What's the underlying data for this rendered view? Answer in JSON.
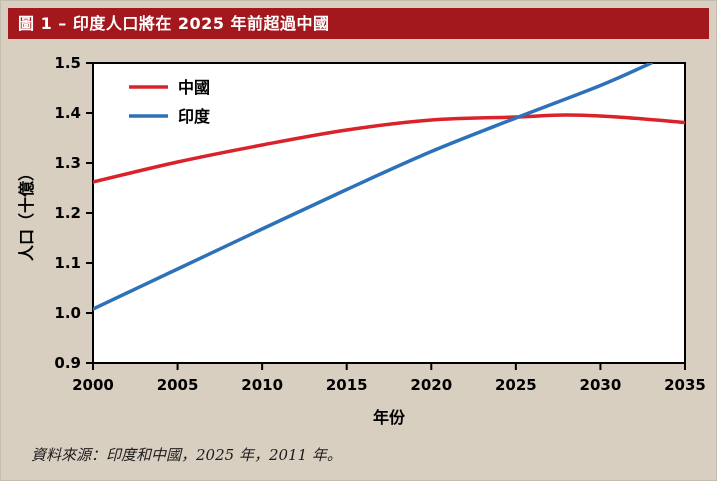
{
  "title": "圖 1 – 印度人口將在 2025 年前超過中國",
  "source": "資料來源：印度和中國，2025 年，2011 年。",
  "colors": {
    "title_bar": "#a2181d",
    "background": "#d9cfc1",
    "plot_background": "#ffffff",
    "axis": "#000000",
    "china_line": "#d9222a",
    "india_line": "#2d72b8"
  },
  "chart_data": {
    "type": "line",
    "title": "圖 1 – 印度人口將在 2025 年前超過中國",
    "xlabel": "年份",
    "ylabel": "人口（十億）",
    "xlim": [
      2000,
      2035
    ],
    "ylim": [
      0.9,
      1.5
    ],
    "xticks": [
      2000,
      2005,
      2010,
      2015,
      2020,
      2025,
      2030,
      2035
    ],
    "yticks": [
      0.9,
      1.0,
      1.1,
      1.2,
      1.3,
      1.4,
      1.5
    ],
    "grid": false,
    "legend_position": "top-left",
    "series": [
      {
        "name": "中國",
        "key": "china",
        "color": "#d9222a",
        "points": [
          [
            2000,
            1.262
          ],
          [
            2005,
            1.302
          ],
          [
            2010,
            1.336
          ],
          [
            2015,
            1.366
          ],
          [
            2020,
            1.386
          ],
          [
            2025,
            1.392
          ],
          [
            2028,
            1.396
          ],
          [
            2031,
            1.392
          ],
          [
            2035,
            1.381
          ]
        ]
      },
      {
        "name": "印度",
        "key": "india",
        "color": "#2d72b8",
        "points": [
          [
            2000,
            1.008
          ],
          [
            2005,
            1.088
          ],
          [
            2010,
            1.168
          ],
          [
            2015,
            1.247
          ],
          [
            2020,
            1.323
          ],
          [
            2025,
            1.39
          ],
          [
            2030,
            1.455
          ],
          [
            2033,
            1.5
          ]
        ]
      }
    ]
  }
}
